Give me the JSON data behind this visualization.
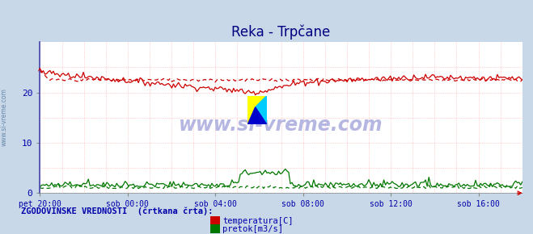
{
  "title": "Reka - Trpčane",
  "bg_color": "#c8d8e8",
  "plot_bg_color": "#ffffff",
  "grid_color_h": "#ffaaaa",
  "grid_color_v": "#ffaaaa",
  "x_tick_labels": [
    "pet 20:00",
    "sob 00:00",
    "sob 04:00",
    "sob 08:00",
    "sob 12:00",
    "sob 16:00"
  ],
  "ylim": [
    0,
    30
  ],
  "yticks": [
    0,
    10,
    20
  ],
  "legend_label1": "temperatura[C]",
  "legend_label2": "pretok[m3/s]",
  "footnote": "ZGODOVINSKE VREDNOSTI  (črtkana črta):",
  "temp_color": "#cc0000",
  "flow_color": "#007700",
  "title_color": "#000080",
  "title_fontsize": 12,
  "axis_label_color": "#0000aa",
  "footnote_color": "#0000aa",
  "watermark_color": "#aaaadd",
  "watermark_text": "www.si-vreme.com",
  "side_label": "www.si-vreme.com",
  "side_label_color": "#6688aa",
  "arrow_color": "#cc0000",
  "n_points": 290
}
